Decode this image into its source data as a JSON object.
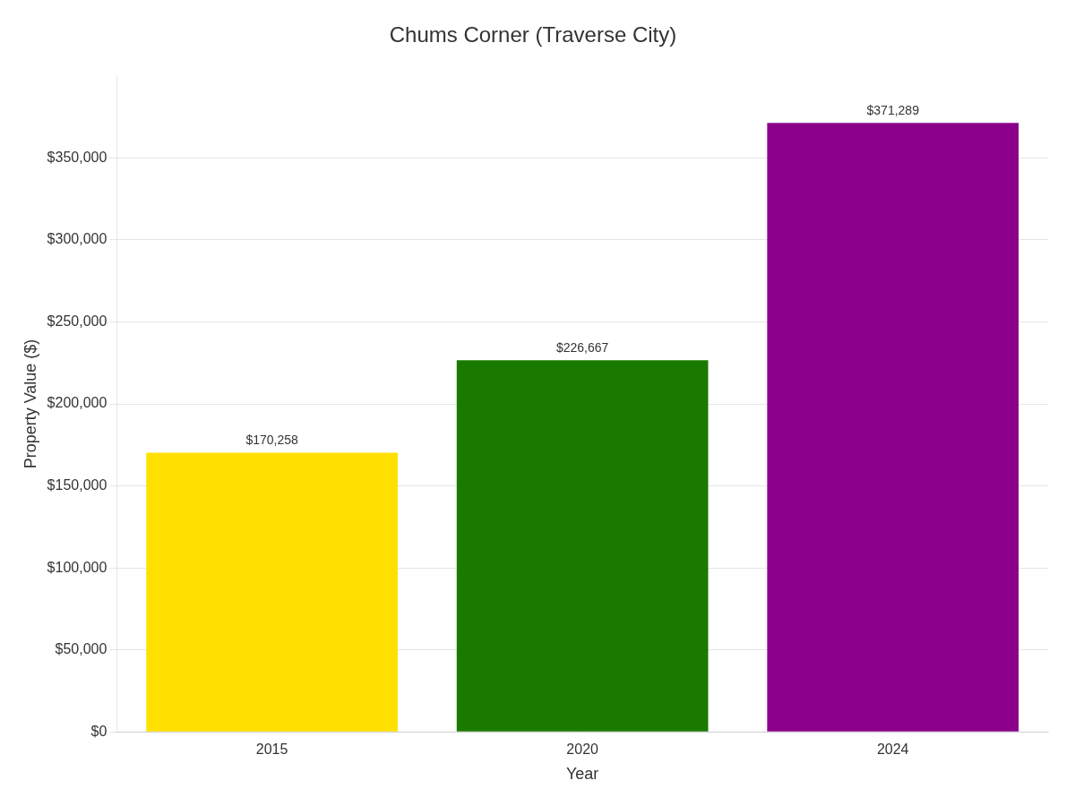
{
  "chart_data": {
    "type": "bar",
    "title": "Chums Corner (Traverse City)",
    "x_label": "Year",
    "y_label": "Property Value ($)",
    "categories": [
      "2015",
      "2020",
      "2024"
    ],
    "values": [
      170258,
      226667,
      371289
    ],
    "value_labels": [
      "$170,258",
      "$226,667",
      "$371,289"
    ],
    "colors": [
      "#FFE000",
      "#1a7a00",
      "#8B008B"
    ],
    "ylim": [
      0,
      400000
    ],
    "yticks": [
      {
        "value": 0,
        "label": "$0"
      },
      {
        "value": 50000,
        "label": "$50,000"
      },
      {
        "value": 100000,
        "label": "$100,000"
      },
      {
        "value": 150000,
        "label": "$150,000"
      },
      {
        "value": 200000,
        "label": "$200,000"
      },
      {
        "value": 250000,
        "label": "$250,000"
      },
      {
        "value": 300000,
        "label": "$300,000"
      },
      {
        "value": 350000,
        "label": "$350,000"
      }
    ],
    "grid": true,
    "data_labels": true
  }
}
